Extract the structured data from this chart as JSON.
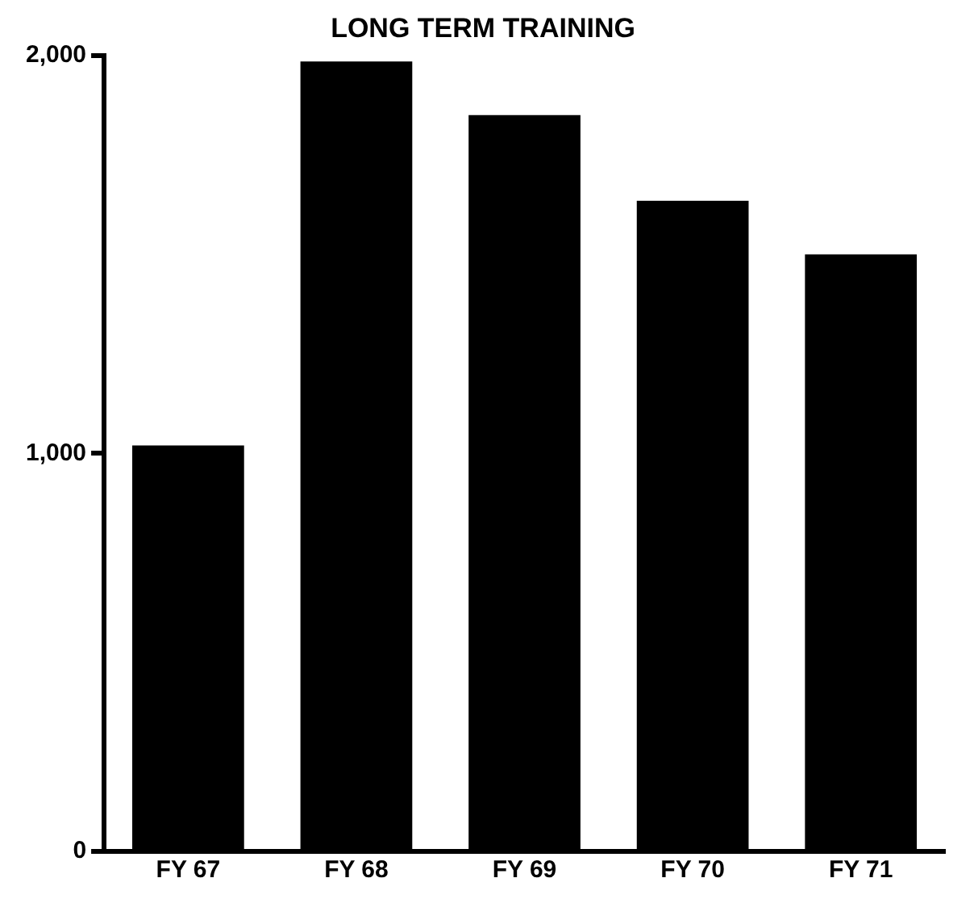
{
  "chart_data": {
    "type": "bar",
    "title": "LONG TERM TRAINING",
    "categories": [
      "FY 67",
      "FY 68",
      "FY 69",
      "FY 70",
      "FY 71"
    ],
    "values": [
      1020,
      1985,
      1850,
      1635,
      1500
    ],
    "color": "#000000",
    "ylim": [
      0,
      2000
    ],
    "yticks": [
      {
        "value": 0,
        "label": "0"
      },
      {
        "value": 1000,
        "label": "1,000"
      },
      {
        "value": 2000,
        "label": "2,000"
      }
    ],
    "grid": false,
    "legend": false
  }
}
